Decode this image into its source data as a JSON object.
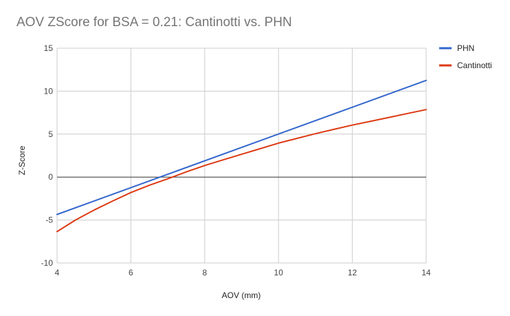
{
  "chart_data": {
    "type": "line",
    "title": "AOV ZScore for BSA = 0.21: Cantinotti vs. PHN",
    "xlabel": "AOV (mm)",
    "ylabel": "Z-Score",
    "xlim": [
      4,
      14
    ],
    "ylim": [
      -10,
      15
    ],
    "x_ticks": [
      4,
      6,
      8,
      10,
      12,
      14
    ],
    "y_ticks": [
      -10,
      -5,
      0,
      5,
      10,
      15
    ],
    "grid": true,
    "legend_position": "right",
    "series": [
      {
        "name": "PHN",
        "color": "#3366cc",
        "x": [
          4,
          14
        ],
        "y": [
          -4.35,
          11.25
        ]
      },
      {
        "name": "Cantinotti",
        "color": "#dc3912",
        "x": [
          4,
          4.5,
          5,
          5.5,
          6,
          6.5,
          7,
          7.5,
          8,
          8.5,
          9,
          9.5,
          10,
          10.5,
          11,
          11.5,
          12,
          12.5,
          13,
          13.5,
          14
        ],
        "y": [
          -6.35,
          -5.0,
          -3.85,
          -2.8,
          -1.8,
          -0.95,
          -0.2,
          0.6,
          1.35,
          2.0,
          2.65,
          3.3,
          3.95,
          4.5,
          5.05,
          5.55,
          6.05,
          6.5,
          6.95,
          7.4,
          7.85
        ]
      }
    ]
  }
}
